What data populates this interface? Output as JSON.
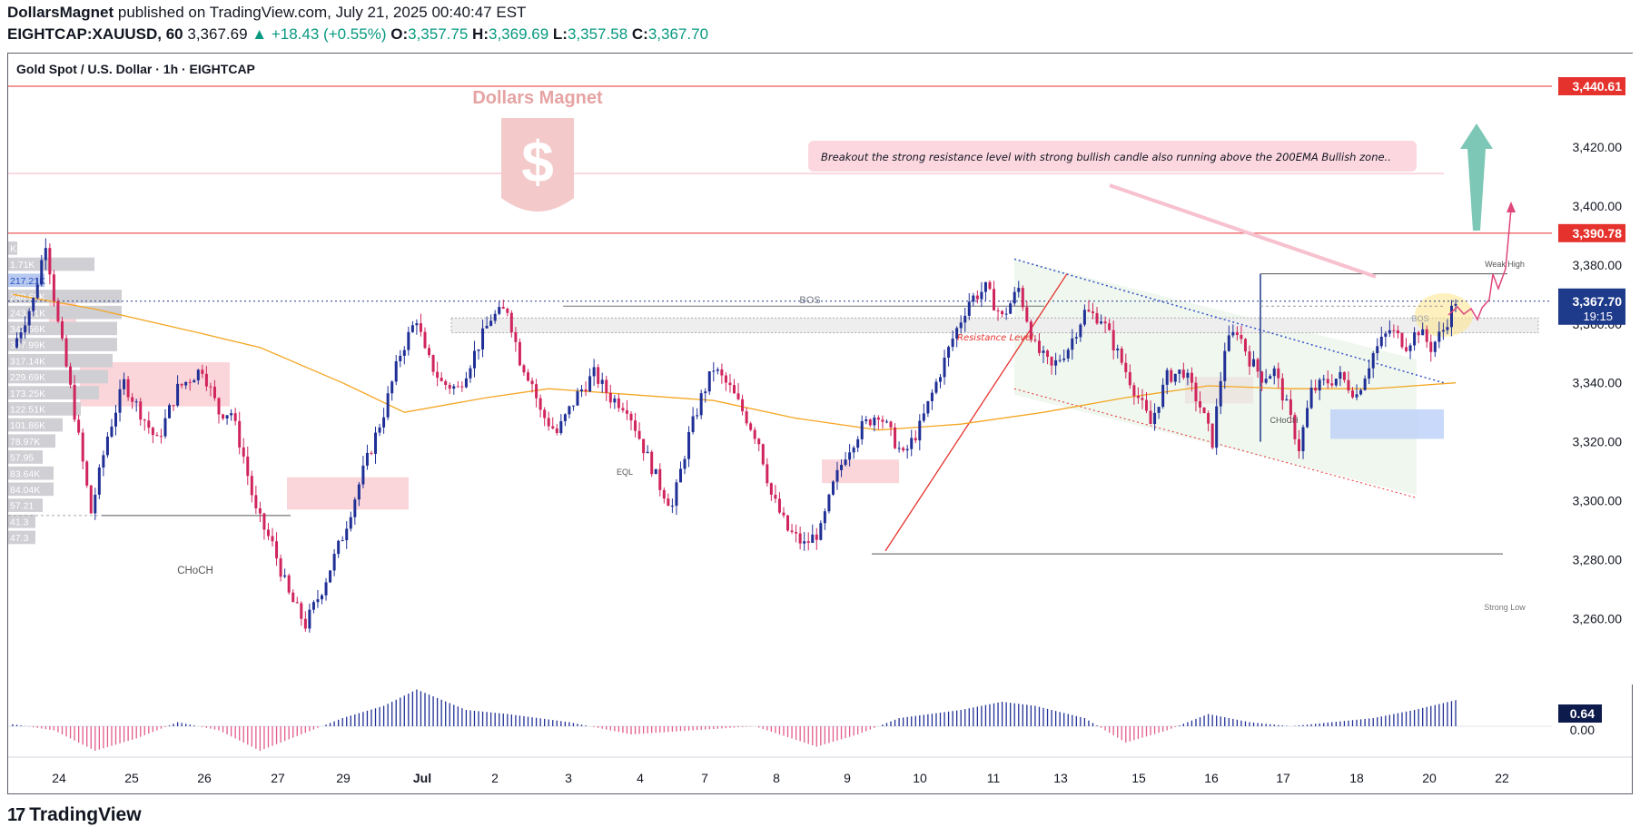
{
  "header": {
    "publisher": "DollarsMagnet",
    "published_text": "published on TradingView.com, July 21, 2025 00:40:47 EST",
    "symbol": "EIGHTCAP:XAUUSD, 60",
    "last": "3,367.69",
    "change": "▲ +18.43 (+0.55%)",
    "o_label": "O:",
    "o": "3,357.75",
    "h_label": "H:",
    "h": "3,369.69",
    "l_label": "L:",
    "l": "3,357.58",
    "c_label": "C:",
    "c": "3,367.70"
  },
  "chart_title": "Gold Spot / U.S. Dollar · 1h · EIGHTCAP",
  "watermark": "Dollars Magnet",
  "footer": {
    "brand": "TradingView"
  },
  "colors": {
    "bull": "#1f2f96",
    "bear": "#d0245c",
    "ema": "#f5a623",
    "resistance_line": "#e5322d",
    "current_price": "#1e3a8a",
    "arrow": "#6fc1ae",
    "osc_pos": "#1f2f96",
    "osc_neg": "#e25b8c"
  },
  "annotations": {
    "note": "Breakout the strong resistance level with strong bullish candle also running above the 200EMA Bullish zone..",
    "resistance_level": "Resistance Level",
    "bos_left": "BOS",
    "bos_right": "BOS",
    "choch_left": "CHoCH",
    "choch_right": "CHoCH",
    "eql": "EQL",
    "weak_high": "Weak High",
    "strong_low": "Strong Low"
  },
  "volume_profile_labels": [
    "K",
    "1.71K",
    "217.21K",
    "248.68K",
    "243.51K",
    "342.56K",
    "347.99K",
    "317.14K",
    "229.69K",
    "173.25K",
    "122.51K",
    "101.86K",
    "78.97K",
    "57.95",
    "83.64K",
    "84.04K",
    "57.21",
    "41.3",
    "47.3"
  ],
  "chart_data": {
    "type": "candlestick",
    "symbol": "XAUUSD",
    "timeframe": "1h",
    "y_axis": {
      "ylim": [
        3252,
        3452
      ],
      "ticks": [
        3260,
        3280,
        3300,
        3320,
        3340,
        3360,
        3380,
        3400,
        3420
      ]
    },
    "price_tags": [
      {
        "value": 3440.61,
        "label": "3,440.61"
      },
      {
        "value": 3390.78,
        "label": "3,390.78"
      },
      {
        "value": 3367.7,
        "label": "3,367.70",
        "countdown": "19:15",
        "current": true
      }
    ],
    "x_labels": [
      "24",
      "25",
      "26",
      "27",
      "29",
      "Jul",
      "2",
      "3",
      "4",
      "7",
      "8",
      "9",
      "10",
      "11",
      "13",
      "15",
      "16",
      "17",
      "18",
      "20",
      "22"
    ],
    "price_path": [
      [
        0,
        3352
      ],
      [
        5,
        3368
      ],
      [
        8,
        3388
      ],
      [
        11,
        3360
      ],
      [
        14,
        3338
      ],
      [
        19,
        3296
      ],
      [
        23,
        3322
      ],
      [
        27,
        3340
      ],
      [
        31,
        3330
      ],
      [
        35,
        3320
      ],
      [
        40,
        3338
      ],
      [
        46,
        3345
      ],
      [
        50,
        3330
      ],
      [
        53,
        3330
      ],
      [
        56,
        3315
      ],
      [
        59,
        3296
      ],
      [
        63,
        3285
      ],
      [
        67,
        3268
      ],
      [
        71,
        3258
      ],
      [
        75,
        3270
      ],
      [
        80,
        3288
      ],
      [
        85,
        3310
      ],
      [
        90,
        3330
      ],
      [
        94,
        3350
      ],
      [
        98,
        3362
      ],
      [
        100,
        3350
      ],
      [
        104,
        3340
      ],
      [
        108,
        3338
      ],
      [
        112,
        3350
      ],
      [
        116,
        3362
      ],
      [
        120,
        3365
      ],
      [
        123,
        3348
      ],
      [
        126,
        3340
      ],
      [
        128,
        3330
      ],
      [
        132,
        3323
      ],
      [
        137,
        3336
      ],
      [
        141,
        3343
      ],
      [
        145,
        3335
      ],
      [
        149,
        3332
      ],
      [
        153,
        3318
      ],
      [
        157,
        3305
      ],
      [
        160,
        3298
      ],
      [
        164,
        3322
      ],
      [
        167,
        3335
      ],
      [
        170,
        3345
      ],
      [
        174,
        3338
      ],
      [
        178,
        3328
      ],
      [
        181,
        3320
      ],
      [
        184,
        3302
      ],
      [
        188,
        3290
      ],
      [
        192,
        3285
      ],
      [
        196,
        3290
      ],
      [
        199,
        3305
      ],
      [
        202,
        3316
      ],
      [
        206,
        3325
      ],
      [
        210,
        3330
      ],
      [
        212,
        3325
      ],
      [
        216,
        3315
      ],
      [
        220,
        3325
      ],
      [
        224,
        3340
      ],
      [
        228,
        3355
      ],
      [
        232,
        3368
      ],
      [
        236,
        3372
      ],
      [
        240,
        3362
      ],
      [
        244,
        3372
      ],
      [
        248,
        3352
      ],
      [
        252,
        3345
      ],
      [
        256,
        3352
      ],
      [
        260,
        3364
      ],
      [
        264,
        3362
      ],
      [
        268,
        3350
      ],
      [
        272,
        3338
      ],
      [
        276,
        3326
      ],
      [
        280,
        3342
      ],
      [
        284,
        3344
      ],
      [
        288,
        3332
      ],
      [
        291,
        3320
      ],
      [
        294,
        3352
      ],
      [
        297,
        3358
      ],
      [
        300,
        3348
      ],
      [
        303,
        3342
      ],
      [
        306,
        3344
      ],
      [
        309,
        3332
      ],
      [
        312,
        3318
      ],
      [
        315,
        3337
      ],
      [
        318,
        3340
      ],
      [
        322,
        3342
      ],
      [
        326,
        3336
      ],
      [
        330,
        3350
      ],
      [
        334,
        3358
      ],
      [
        338,
        3353
      ],
      [
        341,
        3358
      ],
      [
        344,
        3352
      ],
      [
        347,
        3358
      ],
      [
        350,
        3368
      ]
    ],
    "ema200": [
      [
        0,
        3370
      ],
      [
        20,
        3365
      ],
      [
        45,
        3357
      ],
      [
        60,
        3352
      ],
      [
        80,
        3340
      ],
      [
        95,
        3330
      ],
      [
        115,
        3335
      ],
      [
        130,
        3338
      ],
      [
        150,
        3336
      ],
      [
        170,
        3334
      ],
      [
        190,
        3328
      ],
      [
        210,
        3324
      ],
      [
        230,
        3326
      ],
      [
        250,
        3330
      ],
      [
        270,
        3335
      ],
      [
        290,
        3339
      ],
      [
        310,
        3338
      ],
      [
        330,
        3338
      ],
      [
        350,
        3340
      ]
    ],
    "oscillator": [
      [
        0,
        0.05
      ],
      [
        10,
        -0.1
      ],
      [
        20,
        -0.6
      ],
      [
        30,
        -0.3
      ],
      [
        40,
        0.1
      ],
      [
        50,
        -0.1
      ],
      [
        60,
        -0.6
      ],
      [
        70,
        -0.2
      ],
      [
        80,
        0.2
      ],
      [
        90,
        0.5
      ],
      [
        98,
        0.9
      ],
      [
        110,
        0.4
      ],
      [
        120,
        0.3
      ],
      [
        135,
        0.1
      ],
      [
        150,
        -0.2
      ],
      [
        165,
        -0.1
      ],
      [
        180,
        0.0
      ],
      [
        195,
        -0.5
      ],
      [
        205,
        -0.2
      ],
      [
        215,
        0.2
      ],
      [
        230,
        0.4
      ],
      [
        240,
        0.6
      ],
      [
        248,
        0.5
      ],
      [
        260,
        0.2
      ],
      [
        270,
        -0.4
      ],
      [
        280,
        -0.1
      ],
      [
        290,
        0.3
      ],
      [
        300,
        0.1
      ],
      [
        310,
        0.0
      ],
      [
        320,
        0.1
      ],
      [
        330,
        0.2
      ],
      [
        340,
        0.4
      ],
      [
        350,
        0.64
      ]
    ],
    "oscillator_last": {
      "value": 0.64,
      "label": "0.64",
      "zero_label": "0.00"
    }
  }
}
